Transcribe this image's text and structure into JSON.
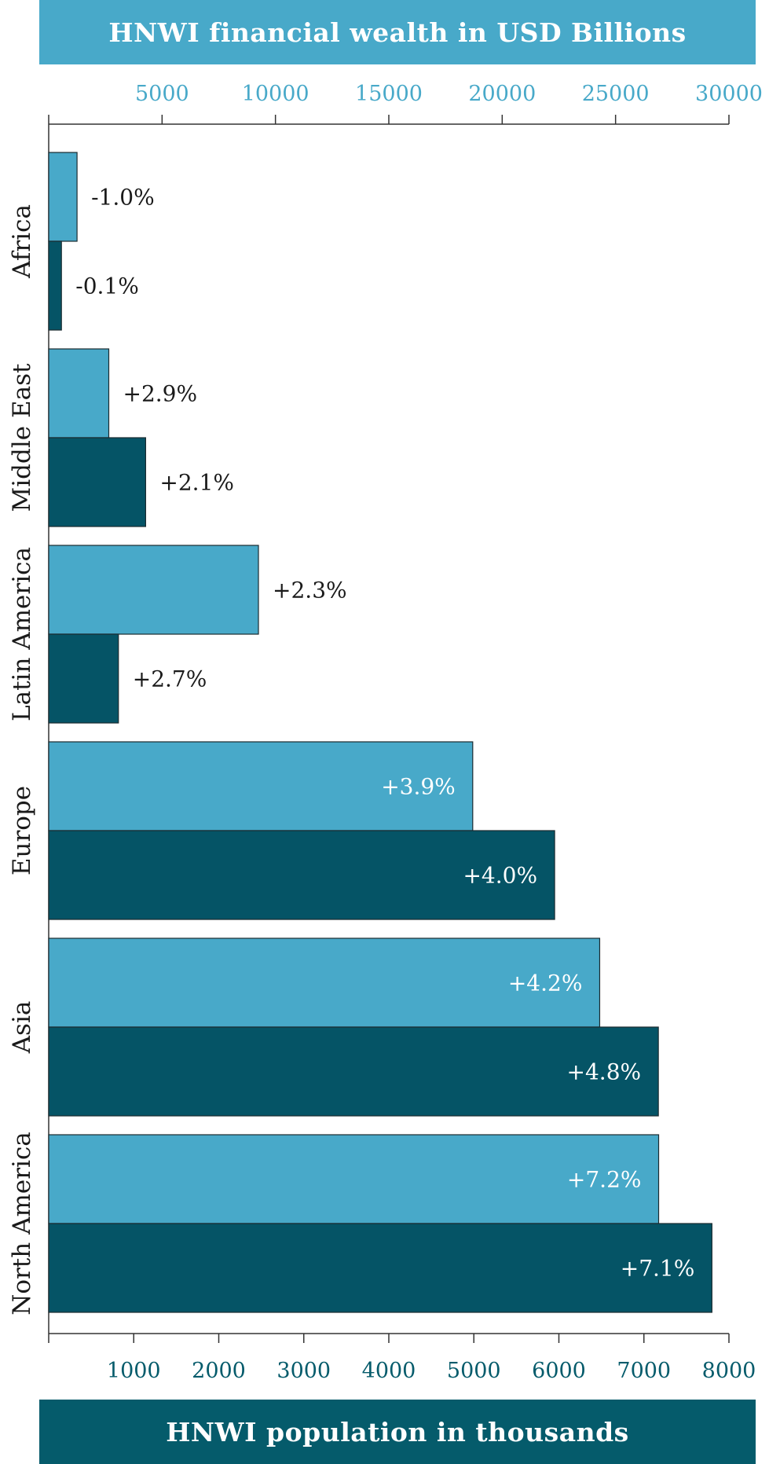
{
  "chart_data": {
    "type": "bar",
    "orientation": "horizontal",
    "top_axis_title": "HNWI financial wealth in USD Billions",
    "bottom_axis_title": "HNWI population in thousands",
    "top_axis": {
      "range": [
        0,
        30000
      ],
      "ticks": [
        "5000",
        "10000",
        "15000",
        "20000",
        "25000",
        "30000"
      ],
      "tick_values": [
        5000,
        10000,
        15000,
        20000,
        25000,
        30000
      ]
    },
    "bottom_axis": {
      "range": [
        0,
        8000
      ],
      "ticks": [
        "1000",
        "2000",
        "3000",
        "4000",
        "5000",
        "6000",
        "7000",
        "8000"
      ],
      "tick_values": [
        1000,
        2000,
        3000,
        4000,
        5000,
        6000,
        7000,
        8000
      ]
    },
    "categories": [
      "Africa",
      "Middle East",
      "Latin America",
      "Europe",
      "Asia",
      "North America"
    ],
    "series": [
      {
        "axis": "top",
        "color": "#48a9c9",
        "values": [
          1250,
          2650,
          9250,
          18700,
          24300,
          26900
        ],
        "labels": [
          "-1.0%",
          "+2.9%",
          "+2.3%",
          "+3.9%",
          "+4.2%",
          "+7.2%"
        ]
      },
      {
        "axis": "bottom",
        "color": "#055466",
        "values": [
          150,
          1140,
          820,
          5950,
          7170,
          7800
        ],
        "labels": [
          "-0.1%",
          "+2.1%",
          "+2.7%",
          "+4.0%",
          "+4.8%",
          "+7.1%"
        ]
      }
    ],
    "colors": {
      "top_axis_text": "#48a9c9",
      "bottom_axis_text": "#055b6b",
      "axis_line": "#333333",
      "label_dark": "#1a1a1a",
      "label_light": "#ffffff"
    },
    "grid": false,
    "legend": "none"
  }
}
